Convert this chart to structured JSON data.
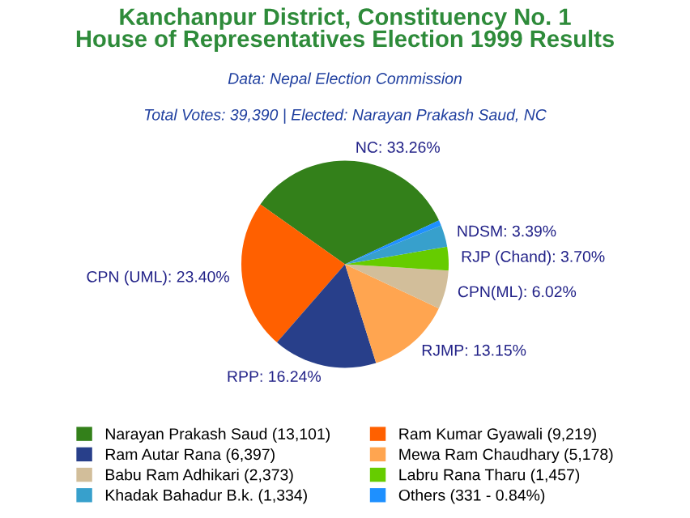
{
  "chart_data": {
    "type": "pie",
    "title": "Kanchanpur District, Constituency No. 1\nHouse of Representatives Election 1999 Results",
    "subtitle": "Data: Nepal Election Commission",
    "annotations": [
      "Total Votes: 39,390 | Elected: Narayan Prakash Saud, NC"
    ],
    "categories": [
      "Narayan Prakash Saud (13,101)",
      "Ram Kumar Gyawali (9,219)",
      "Ram Autar Rana (6,397)",
      "Mewa Ram Chaudhary (5,178)",
      "Babu Ram Adhikari (2,373)",
      "Labru Rana Tharu (1,457)",
      "Khadak Bahadur B.k. (1,334)",
      "Others (331 - 0.84%)"
    ],
    "values": [
      33.26,
      23.4,
      16.24,
      13.15,
      6.02,
      3.7,
      3.39,
      0.84
    ],
    "value_labels": [
      "NC: 33.26%",
      "CPN (UML): 23.40%",
      "RPP: 16.24%",
      "RJMP: 13.15%",
      "CPN(ML): 6.02%",
      "RJP (Chand): 3.70%",
      "NDSM: 3.39%",
      null
    ],
    "colors": [
      "#33801a",
      "#ff6000",
      "#283f8a",
      "#ffa550",
      "#d2be9a",
      "#66cc00",
      "#37a0cc",
      "#1e90ff"
    ],
    "legend": "bottom"
  }
}
